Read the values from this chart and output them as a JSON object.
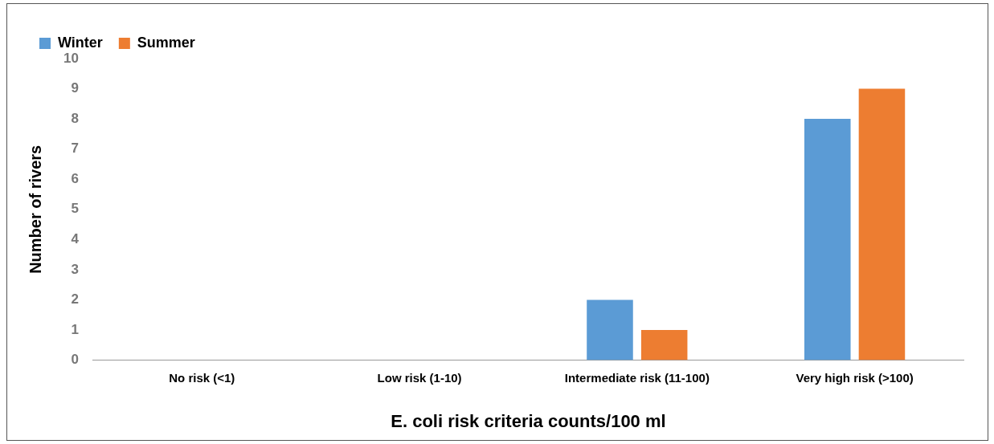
{
  "chart_data": {
    "type": "bar",
    "xlabel": "E. coli risk criteria counts/100 ml",
    "ylabel": "Number of rivers",
    "categories": [
      "No risk (<1)",
      "Low risk (1-10)",
      "Intermediate risk (11-100)",
      "Very high risk (>100)"
    ],
    "series": [
      {
        "name": "Winter",
        "color": "#5b9bd5",
        "values": [
          0,
          0,
          2,
          8
        ]
      },
      {
        "name": "Summer",
        "color": "#ed7d31",
        "values": [
          0,
          0,
          1,
          9
        ]
      }
    ],
    "ylim": [
      0,
      10
    ],
    "yticks": [
      0,
      1,
      2,
      3,
      4,
      5,
      6,
      7,
      8,
      9,
      10
    ],
    "grid": false,
    "legend": "top left"
  }
}
